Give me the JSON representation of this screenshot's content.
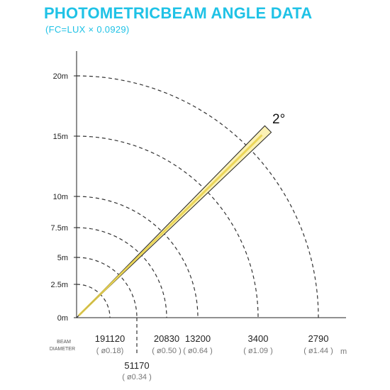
{
  "header": {
    "title": "PHOTOMETRICBEAM ANGLE DATA",
    "subtitle": "(FC=LUX × 0.0929)"
  },
  "chart_data": {
    "type": "diagram",
    "beam_angle_label": "2°",
    "y_axis_ticks": [
      "20m",
      "15m",
      "10m",
      "7.5m",
      "5m",
      "2.5m",
      "0m"
    ],
    "y_axis_values": [
      20,
      15,
      10,
      7.5,
      5,
      2.5,
      0
    ],
    "arc_distances": [
      2.5,
      5,
      7.5,
      10,
      15,
      20
    ],
    "beam_label": [
      "BEAM",
      "DIAMETER"
    ],
    "unit": "m",
    "readings": [
      {
        "distance": 2.5,
        "lux": "191120",
        "diameter": "( ø0.18)"
      },
      {
        "distance": 5,
        "lux": "51170",
        "diameter": "( ø0.34 )"
      },
      {
        "distance": 7.5,
        "lux": "20830",
        "diameter": "( ø0.50 )"
      },
      {
        "distance": 10,
        "lux": "13200",
        "diameter": "( ø0.64 )"
      },
      {
        "distance": 15,
        "lux": "3400",
        "diameter": "( ø1.09 )"
      },
      {
        "distance": 20,
        "lux": "2790",
        "diameter": "( ø1.44 )"
      }
    ],
    "colors": {
      "title": "#1fc2e6",
      "beam_fill": "#fbf1b4",
      "beam_core": "#e9d24a",
      "beam_outline": "#222222",
      "arc": "#333333"
    }
  }
}
